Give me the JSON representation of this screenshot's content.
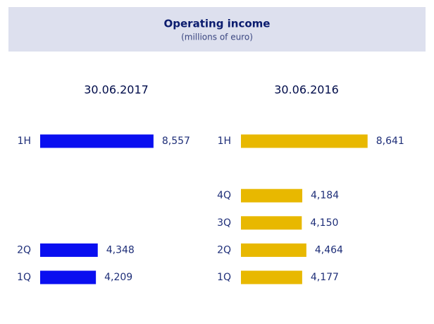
{
  "header": {
    "title": "Operating income",
    "subtitle": "(millions of euro)"
  },
  "chart_data": [
    {
      "type": "bar",
      "orientation": "horizontal",
      "title": "30.06.2017",
      "color": "#0a0ff0",
      "categories": [
        "1H",
        "2Q",
        "1Q"
      ],
      "values": [
        8557,
        4348,
        4209
      ],
      "value_labels": [
        "8,557",
        "4,348",
        "4,209"
      ]
    },
    {
      "type": "bar",
      "orientation": "horizontal",
      "title": "30.06.2016",
      "color": "#e8b800",
      "categories": [
        "1H",
        "4Q",
        "3Q",
        "2Q",
        "1Q"
      ],
      "values": [
        8641,
        4184,
        4150,
        4464,
        4177
      ],
      "value_labels": [
        "8,641",
        "4,184",
        "4,150",
        "4,464",
        "4,177"
      ]
    }
  ]
}
